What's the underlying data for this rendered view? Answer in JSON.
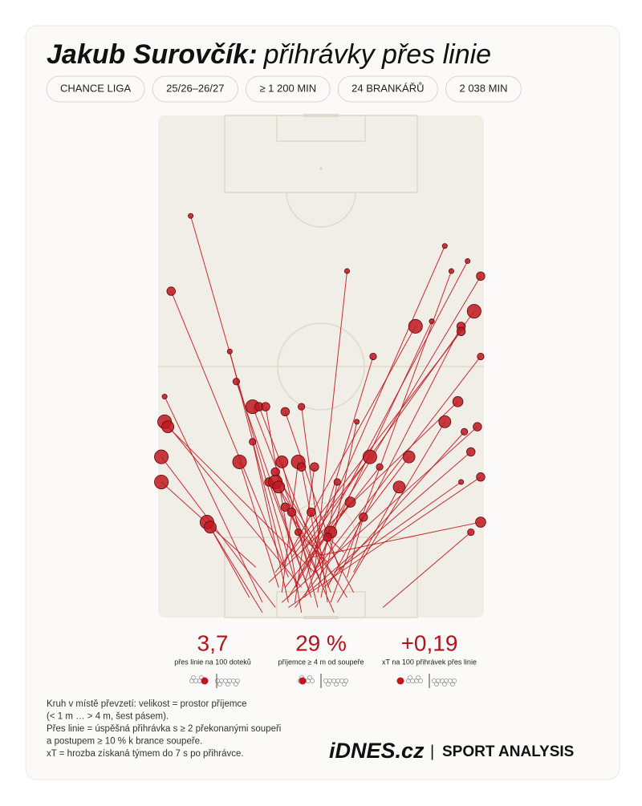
{
  "header": {
    "name": "Jakub Surovčík:",
    "subtitle": "přihrávky přes linie",
    "tags": [
      "CHANCE LIGA",
      "25/26–26/27",
      "≥ 1 200 MIN",
      "24 BRANKÁŘŮ",
      "2 038 MIN"
    ]
  },
  "pitch": {
    "xlim": [
      0,
      100
    ],
    "ylim": [
      0,
      100
    ],
    "color": "#c0171f",
    "passes": [
      {
        "from": [
          43,
          5
        ],
        "to": [
          10,
          80
        ],
        "space": 1
      },
      {
        "from": [
          40,
          8
        ],
        "to": [
          4,
          65
        ],
        "space": 3
      },
      {
        "from": [
          39,
          10
        ],
        "to": [
          22,
          53
        ],
        "space": 1
      },
      {
        "from": [
          32,
          3
        ],
        "to": [
          2,
          44
        ],
        "space": 1
      },
      {
        "from": [
          44,
          6
        ],
        "to": [
          2,
          39
        ],
        "space": 6
      },
      {
        "from": [
          48,
          9
        ],
        "to": [
          3,
          38
        ],
        "space": 5
      },
      {
        "from": [
          36,
          2
        ],
        "to": [
          1,
          32
        ],
        "space": 6
      },
      {
        "from": [
          30,
          10
        ],
        "to": [
          1,
          27
        ],
        "space": 6
      },
      {
        "from": [
          32,
          1
        ],
        "to": [
          15,
          19
        ],
        "space": 6
      },
      {
        "from": [
          28,
          4
        ],
        "to": [
          16,
          18
        ],
        "space": 5
      },
      {
        "from": [
          47,
          4
        ],
        "to": [
          24,
          47
        ],
        "space": 2
      },
      {
        "from": [
          50,
          7
        ],
        "to": [
          29,
          42
        ],
        "space": 6
      },
      {
        "from": [
          53,
          5
        ],
        "to": [
          31,
          42
        ],
        "space": 3
      },
      {
        "from": [
          44,
          1
        ],
        "to": [
          33,
          42
        ],
        "space": 3
      },
      {
        "from": [
          56,
          9
        ],
        "to": [
          39,
          41
        ],
        "space": 3
      },
      {
        "from": [
          52,
          3
        ],
        "to": [
          44,
          42
        ],
        "space": 2
      },
      {
        "from": [
          40,
          3
        ],
        "to": [
          29,
          35
        ],
        "space": 2
      },
      {
        "from": [
          37,
          6
        ],
        "to": [
          25,
          31
        ],
        "space": 6
      },
      {
        "from": [
          49,
          2
        ],
        "to": [
          38,
          31
        ],
        "space": 5
      },
      {
        "from": [
          51,
          12
        ],
        "to": [
          36,
          29
        ],
        "space": 3
      },
      {
        "from": [
          46,
          6
        ],
        "to": [
          34,
          27
        ],
        "space": 3
      },
      {
        "from": [
          58,
          4
        ],
        "to": [
          36,
          27
        ],
        "space": 6
      },
      {
        "from": [
          54,
          1
        ],
        "to": [
          37,
          26
        ],
        "space": 5
      },
      {
        "from": [
          38,
          5
        ],
        "to": [
          43,
          31
        ],
        "space": 6
      },
      {
        "from": [
          50,
          10
        ],
        "to": [
          44,
          30
        ],
        "space": 3
      },
      {
        "from": [
          42,
          3
        ],
        "to": [
          48,
          30
        ],
        "space": 3
      },
      {
        "from": [
          55,
          7
        ],
        "to": [
          39,
          22
        ],
        "space": 3
      },
      {
        "from": [
          47,
          9
        ],
        "to": [
          41,
          21
        ],
        "space": 3
      },
      {
        "from": [
          60,
          5
        ],
        "to": [
          47,
          21
        ],
        "space": 3
      },
      {
        "from": [
          52,
          11
        ],
        "to": [
          43,
          17
        ],
        "space": 2
      },
      {
        "from": [
          45,
          4
        ],
        "to": [
          53,
          17
        ],
        "space": 5
      },
      {
        "from": [
          57,
          13
        ],
        "to": [
          52,
          16
        ],
        "space": 3
      },
      {
        "from": [
          49,
          5
        ],
        "to": [
          55,
          27
        ],
        "space": 2
      },
      {
        "from": [
          43,
          8
        ],
        "to": [
          59,
          23
        ],
        "space": 4
      },
      {
        "from": [
          48,
          9
        ],
        "to": [
          58,
          69
        ],
        "space": 1
      },
      {
        "from": [
          45,
          7
        ],
        "to": [
          66,
          52
        ],
        "space": 2
      },
      {
        "from": [
          50,
          4
        ],
        "to": [
          61,
          39
        ],
        "space": 1
      },
      {
        "from": [
          41,
          12
        ],
        "to": [
          65,
          32
        ],
        "space": 6
      },
      {
        "from": [
          39,
          6
        ],
        "to": [
          68,
          30
        ],
        "space": 2
      },
      {
        "from": [
          60,
          9
        ],
        "to": [
          74,
          26
        ],
        "space": 5
      },
      {
        "from": [
          42,
          2
        ],
        "to": [
          77,
          32
        ],
        "space": 5
      },
      {
        "from": [
          58,
          8
        ],
        "to": [
          63,
          20
        ],
        "space": 3
      },
      {
        "from": [
          38,
          10
        ],
        "to": [
          79,
          58
        ],
        "space": 6
      },
      {
        "from": [
          47,
          8
        ],
        "to": [
          84,
          59
        ],
        "space": 1
      },
      {
        "from": [
          42,
          6
        ],
        "to": [
          88,
          74
        ],
        "space": 1
      },
      {
        "from": [
          53,
          3
        ],
        "to": [
          90,
          69
        ],
        "space": 1
      },
      {
        "from": [
          46,
          11
        ],
        "to": [
          95,
          71
        ],
        "space": 1
      },
      {
        "from": [
          40,
          4
        ],
        "to": [
          99,
          68
        ],
        "space": 3
      },
      {
        "from": [
          44,
          13
        ],
        "to": [
          97,
          61
        ],
        "space": 6
      },
      {
        "from": [
          52,
          6
        ],
        "to": [
          93,
          58
        ],
        "space": 3
      },
      {
        "from": [
          36,
          9
        ],
        "to": [
          93,
          57
        ],
        "space": 3
      },
      {
        "from": [
          49,
          10
        ],
        "to": [
          99,
          52
        ],
        "space": 2
      },
      {
        "from": [
          34,
          7
        ],
        "to": [
          92,
          43
        ],
        "space": 4
      },
      {
        "from": [
          55,
          3
        ],
        "to": [
          88,
          39
        ],
        "space": 5
      },
      {
        "from": [
          38,
          3
        ],
        "to": [
          98,
          38
        ],
        "space": 3
      },
      {
        "from": [
          51,
          6
        ],
        "to": [
          94,
          37
        ],
        "space": 2
      },
      {
        "from": [
          46,
          5
        ],
        "to": [
          96,
          33
        ],
        "space": 3
      },
      {
        "from": [
          40,
          2
        ],
        "to": [
          99,
          28
        ],
        "space": 3
      },
      {
        "from": [
          54,
          9
        ],
        "to": [
          93,
          27
        ],
        "space": 1
      },
      {
        "from": [
          69,
          2
        ],
        "to": [
          96,
          17
        ],
        "space": 2
      },
      {
        "from": [
          47,
          12
        ],
        "to": [
          99,
          19
        ],
        "space": 4
      }
    ]
  },
  "stats": [
    {
      "value": "3,7",
      "label": "přes linie na 100 doteků"
    },
    {
      "value": "29 %",
      "label": "příjemce ≥ 4 m od soupeře"
    },
    {
      "value": "+0,19",
      "label": "xT na 100 přihrávek přes linie"
    }
  ],
  "notes": [
    "Kruh v místě převzetí: velikost = prostor příjemce",
    "(< 1 m … > 4 m, šest pásem).",
    "Přes linie = úspěšná přihrávka s ≥ 2 překonanými soupeři",
    "a postupem ≥ 10 % k brance soupeře.",
    "xT = hrozba získaná týmem do 7 s po přihrávce."
  ],
  "footer": {
    "brand": "iDNES.cz",
    "separator": "|",
    "product": "SPORT ANALYSIS"
  }
}
